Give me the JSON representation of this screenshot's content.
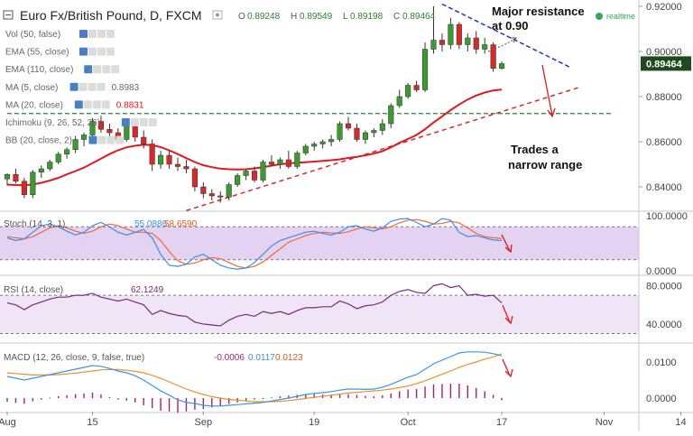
{
  "header": {
    "symbol_title": "Euro Fx/British Pound, D, FXCM",
    "ohlc": [
      {
        "k": "O",
        "v": "0.89248"
      },
      {
        "k": "H",
        "v": "0.89549"
      },
      {
        "k": "L",
        "v": "0.89198"
      },
      {
        "k": "C",
        "v": "0.89464"
      }
    ],
    "realtime_label": "realtime"
  },
  "indicator_legend": [
    {
      "label": "Vol (50, false)",
      "value": ""
    },
    {
      "label": "EMA (55, close)",
      "value": ""
    },
    {
      "label": "EMA (110, close)",
      "value": ""
    },
    {
      "label": "MA (5, close)",
      "value": "0.8983"
    },
    {
      "label": "MA (20, close)",
      "value": "0.8831"
    },
    {
      "label": "Ichimoku (9, 26, 52, 26)",
      "value": ""
    },
    {
      "label": "BB (20, close, 2)",
      "value": ""
    }
  ],
  "annotations": {
    "resistance_line1": "Major resistance",
    "resistance_line2": "at 0.90",
    "range_line1": "Trades a",
    "range_line2": "narrow range"
  },
  "colors": {
    "up": "#3d9a32",
    "down": "#d42a2a",
    "ma20": "#e0181f",
    "resistance": "#1f2fd8",
    "support_line": "#2e7d32",
    "stoch_k": "#3b8ee8",
    "stoch_d": "#f06a3a",
    "rsi": "#7a2a7a",
    "macd": "#3b95e8",
    "signal": "#f0902a",
    "hist": "#a3216e",
    "band": "#dcc7ef",
    "price_tag": "#1f4a1f"
  },
  "chart_data": [
    {
      "type": "candlestick",
      "symbol": "EURGBP",
      "timeframe": "D",
      "yticks": [
        "0.92000",
        "0.90000",
        "0.88000",
        "0.86000",
        "0.84000"
      ],
      "ylim": [
        0.83,
        0.922
      ],
      "last_price": "0.89464",
      "x_labels": [
        {
          "label": "Aug",
          "bar": 0
        },
        {
          "label": "15",
          "bar": 10
        },
        {
          "label": "Sep",
          "bar": 23
        },
        {
          "label": "19",
          "bar": 36
        },
        {
          "label": "Oct",
          "bar": 47
        },
        {
          "label": "17",
          "bar": 58
        },
        {
          "label": "Nov",
          "bar": 70
        },
        {
          "label": "14",
          "bar": 79
        }
      ],
      "candles": [
        [
          0.8435,
          0.846,
          0.8405,
          0.8455
        ],
        [
          0.8455,
          0.848,
          0.8415,
          0.8425
        ],
        [
          0.8425,
          0.844,
          0.835,
          0.8365
        ],
        [
          0.8365,
          0.8475,
          0.835,
          0.8465
        ],
        [
          0.8465,
          0.8495,
          0.844,
          0.848
        ],
        [
          0.848,
          0.852,
          0.847,
          0.851
        ],
        [
          0.851,
          0.8555,
          0.85,
          0.8545
        ],
        [
          0.8545,
          0.8575,
          0.8525,
          0.8565
        ],
        [
          0.8565,
          0.8625,
          0.855,
          0.861
        ],
        [
          0.861,
          0.864,
          0.858,
          0.863
        ],
        [
          0.863,
          0.8705,
          0.862,
          0.869
        ],
        [
          0.869,
          0.8715,
          0.864,
          0.8655
        ],
        [
          0.8655,
          0.868,
          0.86,
          0.864
        ],
        [
          0.864,
          0.866,
          0.859,
          0.861
        ],
        [
          0.861,
          0.868,
          0.86,
          0.867
        ],
        [
          0.867,
          0.869,
          0.86,
          0.862
        ],
        [
          0.862,
          0.865,
          0.857,
          0.859
        ],
        [
          0.859,
          0.861,
          0.847,
          0.85
        ],
        [
          0.85,
          0.856,
          0.848,
          0.854
        ],
        [
          0.854,
          0.856,
          0.848,
          0.85
        ],
        [
          0.85,
          0.853,
          0.847,
          0.849
        ],
        [
          0.849,
          0.852,
          0.846,
          0.848
        ],
        [
          0.848,
          0.849,
          0.838,
          0.84
        ],
        [
          0.84,
          0.842,
          0.835,
          0.837
        ],
        [
          0.837,
          0.839,
          0.834,
          0.836
        ],
        [
          0.836,
          0.838,
          0.833,
          0.8355
        ],
        [
          0.8355,
          0.842,
          0.834,
          0.841
        ],
        [
          0.841,
          0.846,
          0.84,
          0.845
        ],
        [
          0.845,
          0.848,
          0.843,
          0.847
        ],
        [
          0.847,
          0.849,
          0.842,
          0.843
        ],
        [
          0.843,
          0.852,
          0.842,
          0.851
        ],
        [
          0.851,
          0.854,
          0.849,
          0.85
        ],
        [
          0.85,
          0.853,
          0.848,
          0.852
        ],
        [
          0.852,
          0.856,
          0.848,
          0.849
        ],
        [
          0.849,
          0.856,
          0.848,
          0.855
        ],
        [
          0.855,
          0.859,
          0.854,
          0.858
        ],
        [
          0.858,
          0.86,
          0.856,
          0.859
        ],
        [
          0.859,
          0.861,
          0.857,
          0.86
        ],
        [
          0.86,
          0.863,
          0.858,
          0.861
        ],
        [
          0.861,
          0.869,
          0.86,
          0.868
        ],
        [
          0.868,
          0.871,
          0.865,
          0.866
        ],
        [
          0.866,
          0.868,
          0.86,
          0.861
        ],
        [
          0.861,
          0.865,
          0.859,
          0.864
        ],
        [
          0.864,
          0.866,
          0.862,
          0.865
        ],
        [
          0.865,
          0.87,
          0.863,
          0.868
        ],
        [
          0.868,
          0.877,
          0.866,
          0.876
        ],
        [
          0.876,
          0.883,
          0.875,
          0.88
        ],
        [
          0.88,
          0.886,
          0.879,
          0.885
        ],
        [
          0.885,
          0.887,
          0.882,
          0.883
        ],
        [
          0.883,
          0.904,
          0.882,
          0.901
        ],
        [
          0.901,
          0.92,
          0.899,
          0.905
        ],
        [
          0.905,
          0.908,
          0.9,
          0.903
        ],
        [
          0.903,
          0.915,
          0.901,
          0.912
        ],
        [
          0.912,
          0.913,
          0.901,
          0.903
        ],
        [
          0.903,
          0.908,
          0.9,
          0.906
        ],
        [
          0.906,
          0.909,
          0.899,
          0.901
        ],
        [
          0.901,
          0.906,
          0.899,
          0.903
        ],
        [
          0.903,
          0.904,
          0.891,
          0.8925
        ],
        [
          0.8925,
          0.8955,
          0.892,
          0.8946
        ]
      ],
      "ma20": [
        0.841,
        0.8408,
        0.8407,
        0.841,
        0.8418,
        0.8428,
        0.844,
        0.8455,
        0.847,
        0.8485,
        0.8505,
        0.8525,
        0.8545,
        0.8562,
        0.8575,
        0.8582,
        0.8587,
        0.8585,
        0.8576,
        0.8562,
        0.8545,
        0.8527,
        0.851,
        0.8496,
        0.8487,
        0.8481,
        0.8478,
        0.8477,
        0.8478,
        0.8482,
        0.8487,
        0.8494,
        0.85,
        0.8504,
        0.8507,
        0.8509,
        0.8512,
        0.8515,
        0.8518,
        0.8522,
        0.8528,
        0.8533,
        0.854,
        0.8547,
        0.8558,
        0.8575,
        0.8595,
        0.8612,
        0.863,
        0.8655,
        0.8685,
        0.8712,
        0.874,
        0.8765,
        0.8787,
        0.8805,
        0.8818,
        0.8827,
        0.8831
      ],
      "support_dashed": {
        "y": 0.8725,
        "from_bar": 0,
        "to_bar": 71
      },
      "red_trendline": {
        "from": [
          21,
          0.8295
        ],
        "to": [
          67,
          0.884
        ]
      },
      "blue_resistance": {
        "from": [
          51,
          0.921
        ],
        "to": [
          66,
          0.893
        ]
      }
    },
    {
      "type": "line",
      "name": "Stoch (14, 3, 1)",
      "k_value": "55.0886",
      "d_value": "58.6590",
      "yticks": [
        "100.0000",
        "0.0000"
      ],
      "ylim": [
        -5,
        105
      ],
      "band": [
        20,
        80
      ],
      "k": [
        60,
        55,
        58,
        70,
        82,
        85,
        80,
        72,
        65,
        70,
        82,
        88,
        80,
        70,
        65,
        70,
        75,
        60,
        30,
        10,
        8,
        12,
        25,
        30,
        20,
        10,
        5,
        3,
        5,
        15,
        30,
        45,
        55,
        60,
        65,
        70,
        72,
        68,
        65,
        70,
        80,
        82,
        76,
        72,
        78,
        90,
        94,
        95,
        88,
        80,
        85,
        95,
        92,
        70,
        62,
        64,
        60,
        56,
        55
      ],
      "d": [
        62,
        60,
        58,
        62,
        70,
        78,
        82,
        78,
        72,
        68,
        72,
        80,
        85,
        82,
        76,
        70,
        70,
        68,
        55,
        35,
        18,
        12,
        14,
        20,
        24,
        22,
        15,
        8,
        5,
        8,
        16,
        28,
        40,
        52,
        58,
        64,
        68,
        70,
        69,
        68,
        71,
        76,
        80,
        78,
        76,
        80,
        87,
        92,
        93,
        90,
        85,
        86,
        90,
        87,
        78,
        68,
        62,
        60,
        58.6
      ]
    },
    {
      "type": "line",
      "name": "RSI (14, close)",
      "value": "62.1249",
      "yticks": [
        "80.0000",
        "40.0000"
      ],
      "ylim": [
        22,
        88
      ],
      "band": [
        30,
        70
      ],
      "rsi": [
        62,
        60,
        55,
        60,
        63,
        66,
        68,
        68,
        70,
        70,
        72,
        68,
        66,
        64,
        66,
        63,
        60,
        50,
        54,
        51,
        49,
        48,
        42,
        40,
        39,
        38,
        44,
        48,
        50,
        48,
        53,
        51,
        53,
        50,
        54,
        57,
        57,
        58,
        58,
        64,
        61,
        56,
        59,
        60,
        63,
        70,
        74,
        76,
        73,
        72,
        80,
        82,
        78,
        80,
        70,
        71,
        69,
        70,
        62
      ]
    },
    {
      "type": "line",
      "name": "MACD (12, 26, close, 9, false, true)",
      "histogram_value": "-0.0006",
      "macd_value": "0.0117",
      "signal_value": "0.0123",
      "yticks": [
        "0.0100",
        "0.0000"
      ],
      "ylim": [
        -0.0035,
        0.0145
      ],
      "macd": [
        0.006,
        0.0055,
        0.005,
        0.0055,
        0.006,
        0.0065,
        0.007,
        0.0075,
        0.008,
        0.0085,
        0.009,
        0.0088,
        0.0082,
        0.0075,
        0.007,
        0.0062,
        0.005,
        0.0035,
        0.002,
        0.0008,
        -0.0005,
        -0.0012,
        -0.0015,
        -0.002,
        -0.0022,
        -0.0022,
        -0.002,
        -0.0018,
        -0.0016,
        -0.0014,
        -0.0012,
        -0.0008,
        -0.0004,
        0.0,
        0.0005,
        0.001,
        0.0013,
        0.0015,
        0.0018,
        0.0022,
        0.0025,
        0.0025,
        0.0024,
        0.0025,
        0.003,
        0.0038,
        0.0048,
        0.0058,
        0.0065,
        0.008,
        0.0095,
        0.0105,
        0.0115,
        0.0125,
        0.0128,
        0.0128,
        0.0127,
        0.0123,
        0.0117
      ],
      "signal": [
        0.007,
        0.0068,
        0.0066,
        0.0064,
        0.0064,
        0.0064,
        0.0065,
        0.0067,
        0.0069,
        0.0072,
        0.0075,
        0.0078,
        0.0079,
        0.0079,
        0.0077,
        0.0074,
        0.007,
        0.0063,
        0.0055,
        0.0045,
        0.0035,
        0.0025,
        0.0017,
        0.001,
        0.0004,
        0.0,
        -0.0004,
        -0.0006,
        -0.0008,
        -0.001,
        -0.001,
        -0.001,
        -0.0009,
        -0.0007,
        -0.0004,
        -0.0001,
        0.0002,
        0.0005,
        0.0008,
        0.0011,
        0.0014,
        0.0016,
        0.0018,
        0.002,
        0.0022,
        0.0025,
        0.0029,
        0.0034,
        0.004,
        0.0048,
        0.0057,
        0.0066,
        0.0075,
        0.0085,
        0.0093,
        0.01,
        0.0108,
        0.0114,
        0.0123
      ]
    }
  ]
}
